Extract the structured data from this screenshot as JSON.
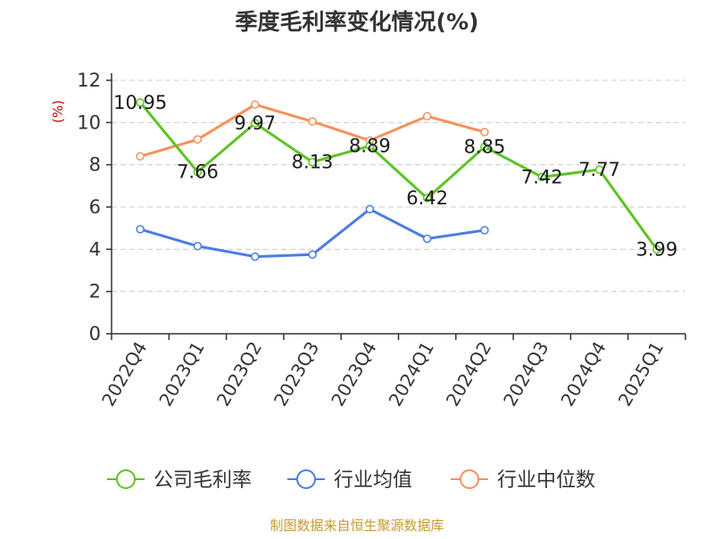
{
  "chart_data": {
    "type": "line",
    "title": "季度毛利率变化情况(%)",
    "ylabel": "(%)",
    "xlabel": "",
    "categories": [
      "2022Q4",
      "2023Q1",
      "2023Q2",
      "2023Q3",
      "2023Q4",
      "2024Q1",
      "2024Q2",
      "2024Q3",
      "2024Q4",
      "2025Q1"
    ],
    "yticks": [
      "0",
      "2",
      "4",
      "6",
      "8",
      "10",
      "12"
    ],
    "ylim": [
      0,
      12
    ],
    "grid": "dashed-horizontal",
    "legend_position": "bottom",
    "series": [
      {
        "name": "公司毛利率",
        "color": "#5cc424",
        "values": [
          10.95,
          7.66,
          9.97,
          8.13,
          8.89,
          6.42,
          8.85,
          7.42,
          7.77,
          3.99
        ],
        "labels": [
          "10.95",
          "7.66",
          "9.97",
          "8.13",
          "8.89",
          "6.42",
          "8.85",
          "7.42",
          "7.77",
          "3.99"
        ]
      },
      {
        "name": "行业均值",
        "color": "#4c7de0",
        "values": [
          4.95,
          4.15,
          3.65,
          3.75,
          5.9,
          4.5,
          4.9,
          null,
          null,
          null
        ]
      },
      {
        "name": "行业中位数",
        "color": "#f7915a",
        "values": [
          8.4,
          9.2,
          10.85,
          10.05,
          9.15,
          10.3,
          9.55,
          null,
          null,
          null
        ]
      }
    ],
    "footer": "制图数据来自恒生聚源数据库",
    "footer_color": "#c79a2e"
  }
}
